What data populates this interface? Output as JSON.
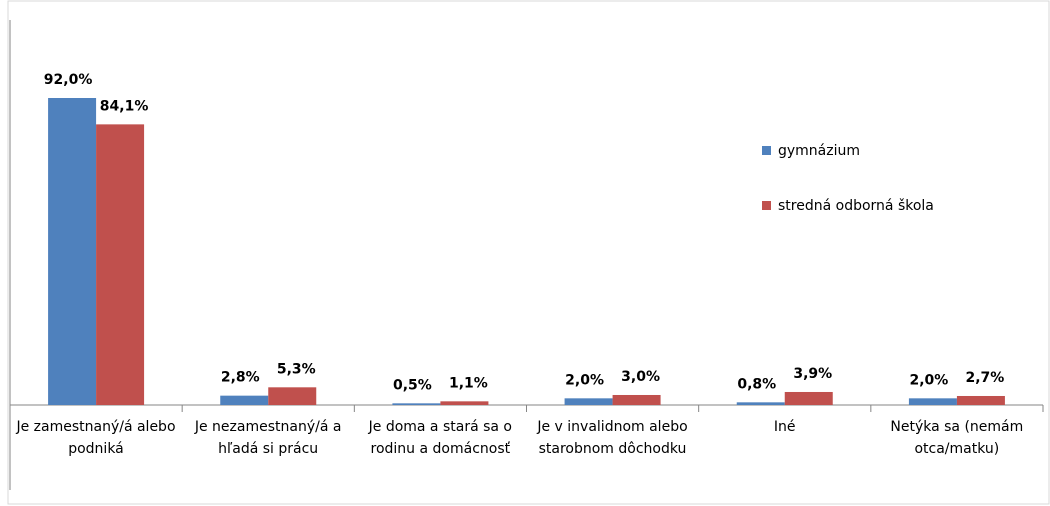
{
  "chart_data": {
    "type": "bar",
    "categories": [
      "Je zamestnaný/á alebo podniká",
      "Je nezamestnaný/á a hľadá si prácu",
      "Je doma a stará sa o rodinu a domácnosť",
      "Je v invalidnom alebo starobnom dôchodku",
      "Iné",
      "Netýka sa (nemám otca/matku)"
    ],
    "series": [
      {
        "name": "gymnázium",
        "color": "#4f81bd",
        "values": [
          92.0,
          2.8,
          0.5,
          2.0,
          0.8,
          2.0
        ],
        "value_labels": [
          "92,0%",
          "2,8%",
          "0,5%",
          "2,0%",
          "0,8%",
          "2,0%"
        ]
      },
      {
        "name": "stredná odborná škola",
        "color": "#c0504d",
        "values": [
          84.1,
          5.3,
          1.1,
          3.0,
          3.9,
          2.7
        ],
        "value_labels": [
          "84,1%",
          "5,3%",
          "1,1%",
          "3,0%",
          "3,9%",
          "2,7%"
        ]
      }
    ],
    "legend": "right"
  }
}
